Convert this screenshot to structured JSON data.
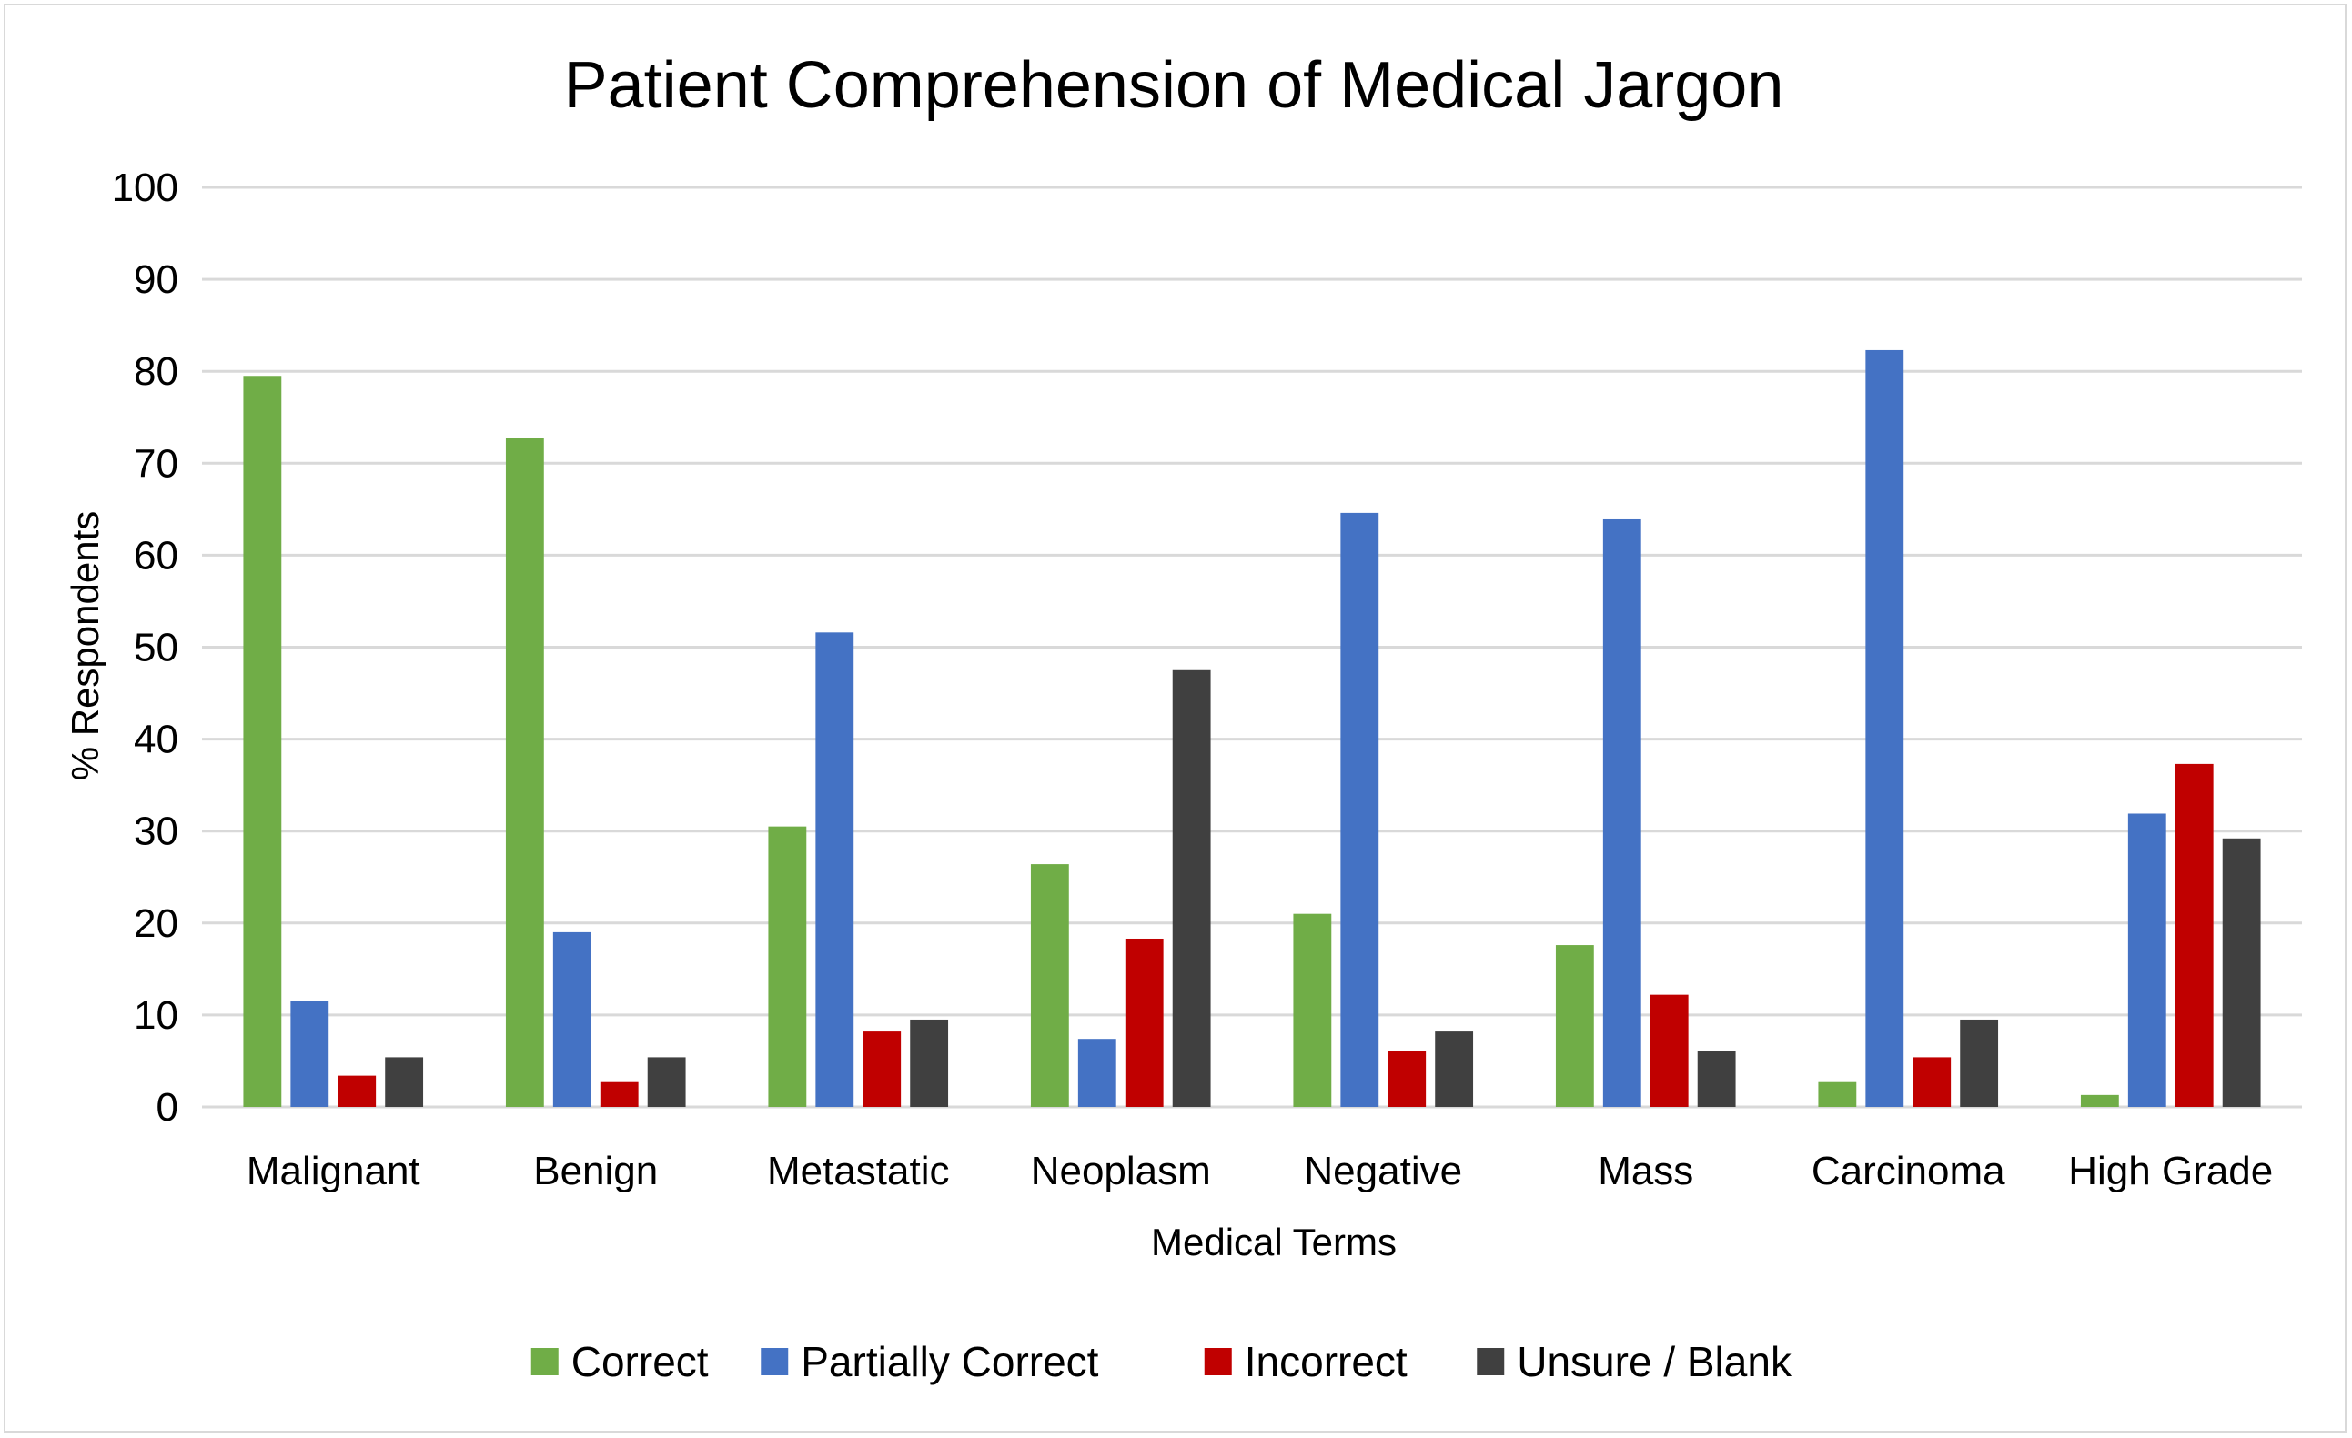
{
  "chart_data": {
    "type": "bar",
    "title": "Patient Comprehension of Medical Jargon",
    "xlabel": "Medical Terms",
    "ylabel": "% Respondents",
    "ylim": [
      0,
      100
    ],
    "yticks": [
      "0",
      "10",
      "20",
      "30",
      "40",
      "50",
      "60",
      "70",
      "80",
      "90",
      "100"
    ],
    "categories": [
      "Malignant",
      "Benign",
      "Metastatic",
      "Neoplasm",
      "Negative",
      "Mass",
      "Carcinoma",
      "High Grade"
    ],
    "series": [
      {
        "name": "Correct",
        "color": "#70ad47",
        "values": [
          79.5,
          72.7,
          30.5,
          26.4,
          21.0,
          17.6,
          2.7,
          1.3
        ]
      },
      {
        "name": "Partially Correct",
        "color": "#4472c4",
        "values": [
          11.5,
          19.0,
          51.6,
          7.4,
          64.6,
          63.9,
          82.3,
          31.9
        ]
      },
      {
        "name": "Incorrect",
        "color": "#c00000",
        "values": [
          3.4,
          2.7,
          8.2,
          18.3,
          6.1,
          12.2,
          5.4,
          37.3
        ]
      },
      {
        "name": "Unsure / Blank",
        "color": "#404040",
        "values": [
          5.4,
          5.4,
          9.5,
          47.5,
          8.2,
          6.1,
          9.5,
          29.2
        ]
      }
    ],
    "grid": true,
    "legend_position": "bottom"
  }
}
